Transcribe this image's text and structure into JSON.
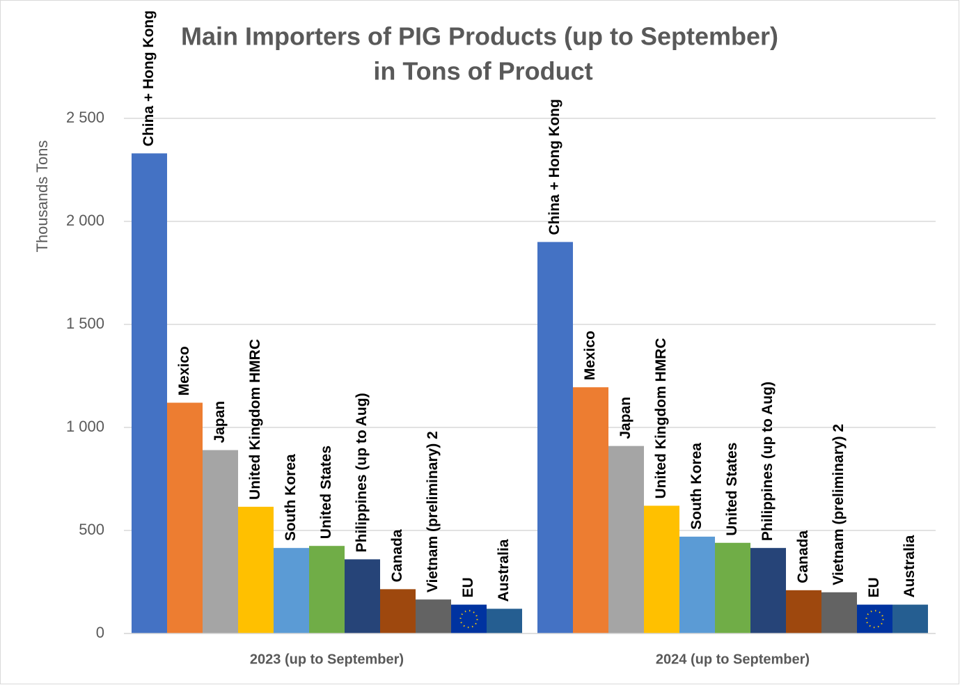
{
  "chart_data": {
    "type": "bar",
    "title": [
      "Main Importers of PIG Products (up to September)",
      "in Tons of Product"
    ],
    "y_label": "Thousands Tons",
    "categories": [
      "2023 (up to September)",
      "2024 (up to September)"
    ],
    "series": [
      {
        "name": "China + Hong Kong",
        "color": "#4472c4",
        "values": [
          2330,
          1900
        ]
      },
      {
        "name": "Mexico",
        "color": "#ed7d31",
        "values": [
          1120,
          1195
        ]
      },
      {
        "name": "Japan",
        "color": "#a5a5a5",
        "values": [
          890,
          910
        ]
      },
      {
        "name": "United Kingdom HMRC",
        "color": "#ffc000",
        "values": [
          615,
          620
        ]
      },
      {
        "name": "South Korea",
        "color": "#5b9bd5",
        "values": [
          415,
          470
        ]
      },
      {
        "name": "United States",
        "color": "#70ad47",
        "values": [
          425,
          440
        ]
      },
      {
        "name": "Philippines (up to Aug)",
        "color": "#264478",
        "values": [
          360,
          415
        ]
      },
      {
        "name": "Canada",
        "color": "#9e480e",
        "values": [
          215,
          210
        ]
      },
      {
        "name": "Vietnam (preliminary) 2",
        "color": "#636363",
        "values": [
          165,
          200
        ]
      },
      {
        "name": "EU",
        "color": "#0033a0",
        "values": [
          140,
          140
        ]
      },
      {
        "name": "Australia",
        "color": "#255e91",
        "values": [
          120,
          140
        ]
      }
    ],
    "ylim": [
      0,
      2500
    ],
    "yticks": [
      0,
      500,
      {
        "value": 1000,
        "label": "1 000"
      },
      {
        "value": 1500,
        "label": "1 500"
      },
      {
        "value": 2000,
        "label": "2 000"
      },
      {
        "value": 2500,
        "label": "2 500"
      }
    ],
    "grid": true
  }
}
